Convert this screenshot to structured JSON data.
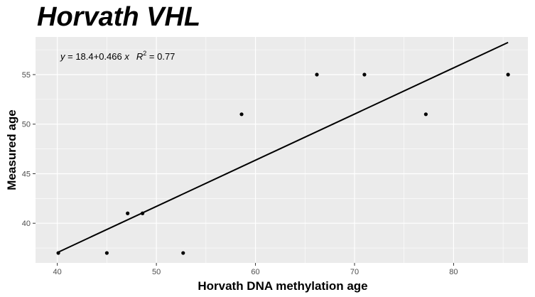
{
  "chart_data": {
    "type": "scatter",
    "title": "Horvath VHL",
    "xlabel": "Horvath DNA methylation age",
    "ylabel": "Measured age",
    "xlim": [
      37.8,
      87.5
    ],
    "ylim": [
      36,
      58.8
    ],
    "xticks": [
      40,
      50,
      60,
      70,
      80
    ],
    "yticks": [
      40,
      45,
      50,
      55
    ],
    "grid": true,
    "points": [
      {
        "x": 40.1,
        "y": 37
      },
      {
        "x": 45.0,
        "y": 37
      },
      {
        "x": 47.1,
        "y": 41
      },
      {
        "x": 48.6,
        "y": 41
      },
      {
        "x": 52.7,
        "y": 37
      },
      {
        "x": 58.6,
        "y": 51
      },
      {
        "x": 66.2,
        "y": 55
      },
      {
        "x": 71.0,
        "y": 55
      },
      {
        "x": 77.2,
        "y": 51
      },
      {
        "x": 85.5,
        "y": 55
      }
    ],
    "fit": {
      "intercept": 18.4,
      "slope": 0.466,
      "x_range": [
        40.1,
        85.5
      ]
    },
    "equation": {
      "lhs": "y",
      "eq": " = 18.4",
      "plus": "+",
      "rest": "0.466 ",
      "x": "x",
      "r": "R",
      "sup": "2",
      "r2": " = 0.77"
    }
  }
}
